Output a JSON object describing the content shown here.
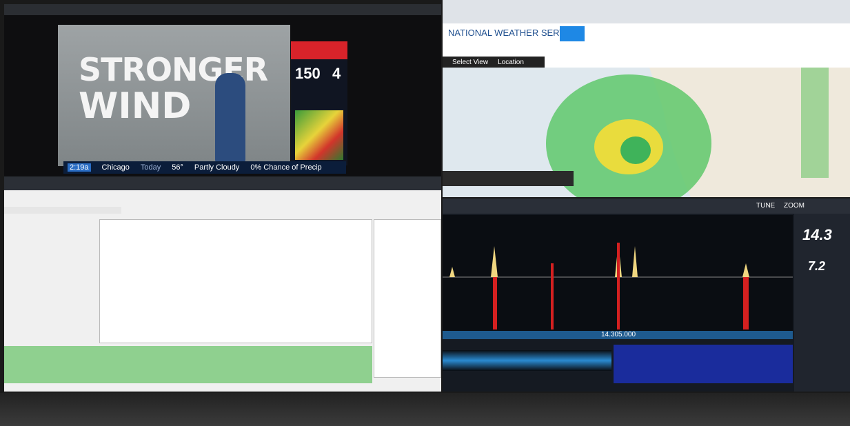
{
  "tv": {
    "headline_line1": "STRONGER",
    "headline_line2": "WIND",
    "wind_speed": "150",
    "category": "4",
    "ticker": {
      "time": "2:19a",
      "city": "Chicago",
      "day": "Today",
      "temp": "56°",
      "condition": "Partly Cloudy",
      "precip": "0% Chance of Precip"
    }
  },
  "nws": {
    "title": "NATIONAL WEATHER SERVICE",
    "toolbar": [
      "Select View",
      "Location"
    ]
  },
  "sdr": {
    "frequency": "14.305.000",
    "vfo_a": "14.3",
    "vfo_b": "7.2",
    "buttons": [
      "TUNE",
      "ZOOM"
    ]
  }
}
